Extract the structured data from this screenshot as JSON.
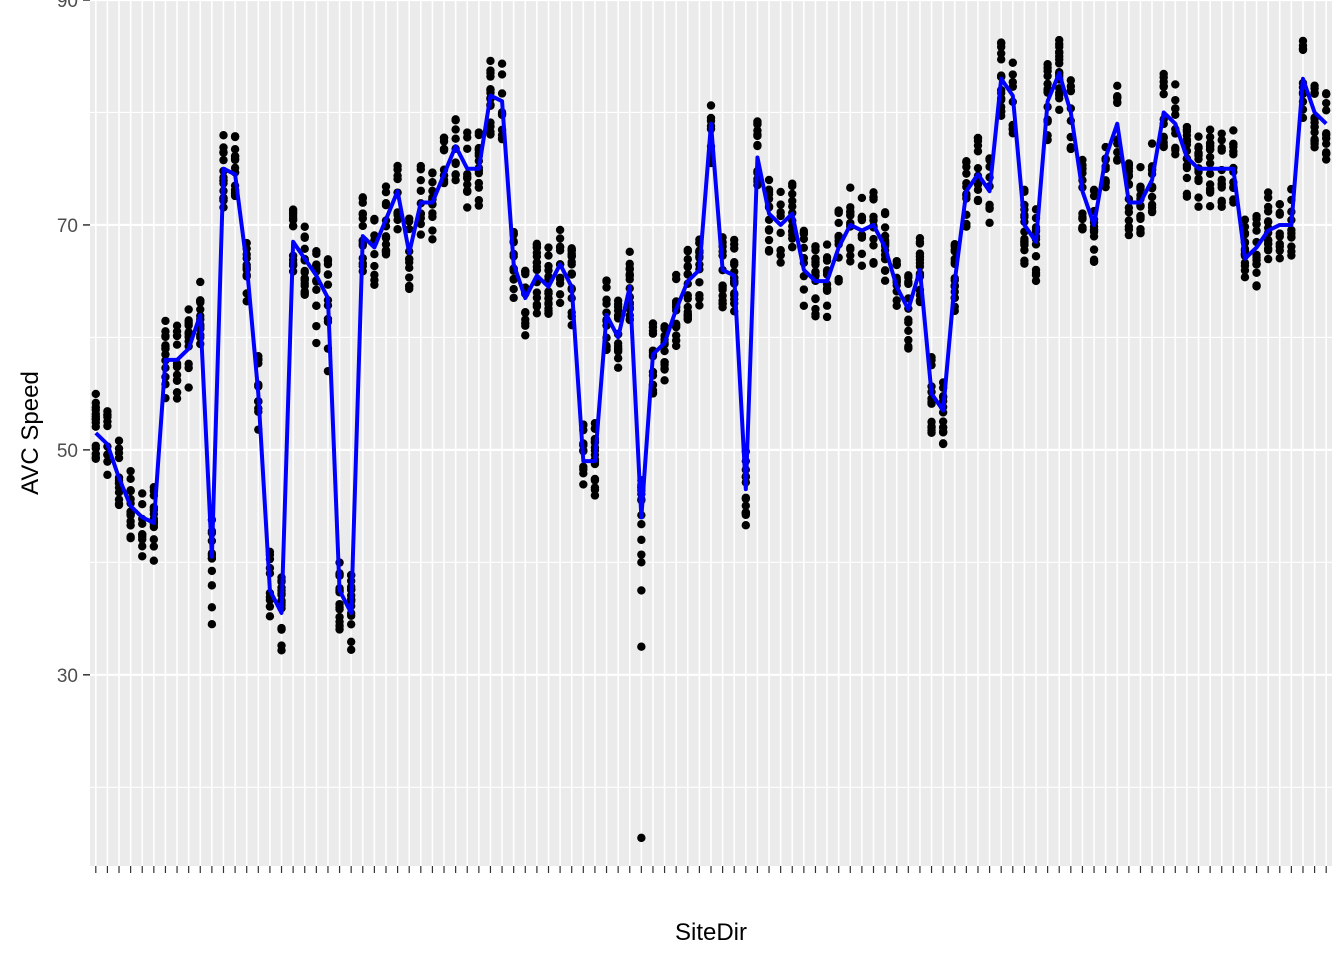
{
  "chart_data": {
    "type": "scatter",
    "xlabel": "SiteDir",
    "ylabel": "AVC Speed",
    "ylim": [
      13,
      90
    ],
    "yticks": [
      30,
      50,
      70,
      90
    ],
    "grid": true,
    "theme": "ggplot2 grey",
    "categories_count": 107,
    "point_color": "#000000",
    "line_color": "#0000ff",
    "panel_color": "#ebebeb",
    "grid_color": "#ffffff",
    "series": [
      {
        "kind": "points",
        "mean_line": [
          51.5,
          50.5,
          47.5,
          45,
          44,
          43.5,
          58,
          58,
          59,
          62,
          40.5,
          75,
          74.5,
          66.5,
          55,
          37.5,
          35.5,
          68.5,
          67,
          65.5,
          63.5,
          37.5,
          35.5,
          69,
          68,
          70.5,
          73,
          67.5,
          72,
          72,
          74.5,
          77,
          75,
          75,
          81.5,
          81,
          66.5,
          63.5,
          65.5,
          64.5,
          66.5,
          64.5,
          49,
          49,
          62,
          60,
          64.5,
          44,
          58.5,
          59.5,
          62.5,
          65,
          66,
          79,
          66,
          65.5,
          46.5,
          76,
          71,
          70,
          71,
          66,
          65,
          65,
          68,
          70,
          69.5,
          70,
          68,
          64.5,
          62.5,
          66,
          55,
          53.5,
          65,
          73,
          74.5,
          73,
          83,
          81.5,
          70,
          68.5,
          81,
          83.5,
          80,
          73,
          70,
          76,
          79,
          72,
          72,
          74,
          80,
          79,
          76,
          75,
          75,
          75,
          75,
          67,
          68,
          69.5,
          70,
          70,
          83,
          80,
          79
        ]
      }
    ]
  }
}
